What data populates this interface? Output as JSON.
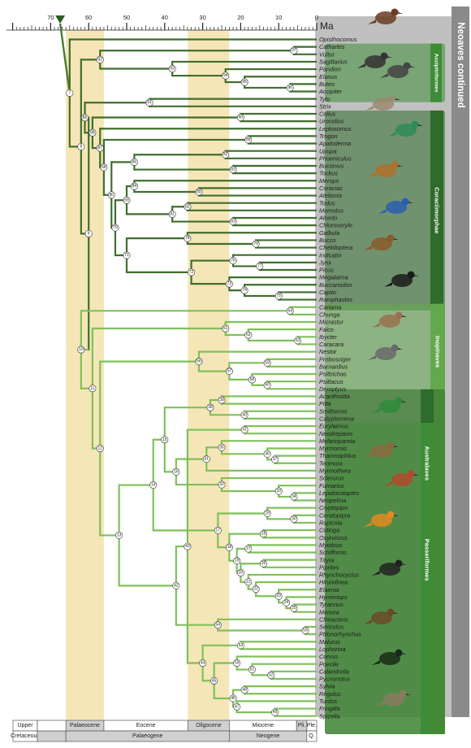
{
  "title": "Neoaves continued",
  "axis": {
    "unit": "Ma",
    "ticks": [
      70,
      60,
      50,
      40,
      30,
      20,
      10,
      0
    ]
  },
  "colors": {
    "epoch_band": "#f5e6b8",
    "epoch_band_dark": "#efd999",
    "stem": "#4a7a32",
    "branch_light": "#7fc05a",
    "branch_dark": "#3f6e2c",
    "group_dark": "#2f6b2a",
    "group_mid": "#3e8c37",
    "group_light": "#64a84e",
    "grey_panel": "#8c8c8c"
  },
  "groups": [
    {
      "label": "Accipitriformes"
    },
    {
      "label": "Coraciimorphae"
    },
    {
      "label": "Inopinaves"
    },
    {
      "label": "Australaves"
    },
    {
      "label": "Passeriformes"
    }
  ],
  "taxa": [
    "Opisthocomus",
    "Cathartes",
    "Vultur",
    "Sagittarius",
    "Pandion",
    "Elanus",
    "Buteo",
    "Accipiter",
    "Tyto",
    "Strix",
    "Colius",
    "Urocolius",
    "Leptosomus",
    "Trogon",
    "Apaloderma",
    "Upupa",
    "Phoeniculus",
    "Bucorvus",
    "Tockus",
    "Merops",
    "Coracias",
    "Atelornis",
    "Todus",
    "Momotus",
    "Alcedo",
    "Chloroceryle",
    "Galbula",
    "Bucco",
    "Chelidoptera",
    "Indicator",
    "Jynx",
    "Picus",
    "Megalaima",
    "Buccanodon",
    "Capito",
    "Ramphastos",
    "Cariama",
    "Chunga",
    "Micrastur",
    "Falco",
    "Ibycter",
    "Caracara",
    "Nestor",
    "Probosciger",
    "Barnardius",
    "Psittrichas",
    "Psittacus",
    "Deroptyus",
    "Acanthisitta",
    "Pitta",
    "Smithornis",
    "Calyptomena",
    "Eurylaimus",
    "Neodrepanis",
    "Melanopareia",
    "Myrmornis",
    "Thamnophilus",
    "Terenura",
    "Myrmothera",
    "Sclerurus",
    "Furnarius",
    "Lepidocolaptes",
    "Neopelma",
    "Cryptopipo",
    "Ceratopipra",
    "Rupicola",
    "Cotinga",
    "Oxyruncus",
    "Myiobius",
    "Schiffornis",
    "Tityra",
    "Piprites",
    "Rhynchocyclus",
    "Hirundinea",
    "Elaenia",
    "Hymenops",
    "Tyrannus",
    "Menura",
    "Climacteris",
    "Sericulus",
    "Ptilonorhynchus",
    "Malurus",
    "Lophorina",
    "Corvus",
    "Poecile",
    "Calandrella",
    "Pycnonotus",
    "Sylvia",
    "Regulus",
    "Turdus",
    "Fringilla",
    "Spizella"
  ],
  "nodes": [
    {
      "id": "n7",
      "label": "7",
      "age": 65
    },
    {
      "id": "n8",
      "label": "8",
      "age": 62
    },
    {
      "id": "n9",
      "label": "9",
      "age": 60
    },
    {
      "id": "n92",
      "label": "92",
      "age": 57
    },
    {
      "id": "n93",
      "label": "93",
      "age": 38
    },
    {
      "id": "n97",
      "label": "97",
      "age": 6
    },
    {
      "id": "n94",
      "label": "94",
      "age": 24
    },
    {
      "id": "n95",
      "label": "95",
      "age": 19
    },
    {
      "id": "n96",
      "label": "96",
      "age": 7
    },
    {
      "id": "n91",
      "label": "91",
      "age": 44
    },
    {
      "id": "n85",
      "label": "85",
      "age": 61
    },
    {
      "id": "n88",
      "label": "88",
      "age": 59
    },
    {
      "id": "n90",
      "label": "90",
      "age": 20
    },
    {
      "id": "n87",
      "label": "87",
      "age": 57
    },
    {
      "id": "n89",
      "label": "89",
      "age": 18
    },
    {
      "id": "n68",
      "label": "68",
      "age": 56
    },
    {
      "id": "n86",
      "label": "86",
      "age": 48
    },
    {
      "id": "n82",
      "label": "82",
      "age": 24
    },
    {
      "id": "n83",
      "label": "83",
      "age": 22
    },
    {
      "id": "n80",
      "label": "80",
      "age": 54
    },
    {
      "id": "n69",
      "label": "69",
      "age": 50
    },
    {
      "id": "n84",
      "label": "84",
      "age": 48
    },
    {
      "id": "n85b",
      "label": "85",
      "age": 31
    },
    {
      "id": "n81",
      "label": "81",
      "age": 38
    },
    {
      "id": "n82b",
      "label": "82",
      "age": 34
    },
    {
      "id": "n83b",
      "label": "83",
      "age": 22
    },
    {
      "id": "n70",
      "label": "70",
      "age": 53
    },
    {
      "id": "n71",
      "label": "71",
      "age": 50
    },
    {
      "id": "n78",
      "label": "78",
      "age": 34
    },
    {
      "id": "n79",
      "label": "79",
      "age": 16
    },
    {
      "id": "n72",
      "label": "72",
      "age": 33
    },
    {
      "id": "n76",
      "label": "76",
      "age": 22
    },
    {
      "id": "n77",
      "label": "77",
      "age": 15
    },
    {
      "id": "n73",
      "label": "73",
      "age": 23
    },
    {
      "id": "n74",
      "label": "74",
      "age": 19
    },
    {
      "id": "n75",
      "label": "75",
      "age": 10
    },
    {
      "id": "n10",
      "label": "10",
      "age": 62
    },
    {
      "id": "n64",
      "label": "64",
      "age": 7
    },
    {
      "id": "n11",
      "label": "11",
      "age": 59
    },
    {
      "id": "n61",
      "label": "61",
      "age": 24
    },
    {
      "id": "n62",
      "label": "62",
      "age": 18
    },
    {
      "id": "n63",
      "label": "63",
      "age": 5
    },
    {
      "id": "n56",
      "label": "56",
      "age": 31
    },
    {
      "id": "n57",
      "label": "57",
      "age": 23
    },
    {
      "id": "n59",
      "label": "59",
      "age": 13
    },
    {
      "id": "n58",
      "label": "58",
      "age": 17
    },
    {
      "id": "n60",
      "label": "60",
      "age": 13
    },
    {
      "id": "n12",
      "label": "12",
      "age": 57
    },
    {
      "id": "n13",
      "label": "13",
      "age": 52
    },
    {
      "id": "n39",
      "label": "39",
      "age": 25
    },
    {
      "id": "n38",
      "label": "38",
      "age": 28
    },
    {
      "id": "n40",
      "label": "40",
      "age": 19
    },
    {
      "id": "n41",
      "label": "41",
      "age": 19
    },
    {
      "id": "n15",
      "label": "15",
      "age": 40
    },
    {
      "id": "n35",
      "label": "35",
      "age": 25
    },
    {
      "id": "n36",
      "label": "36",
      "age": 13
    },
    {
      "id": "n37",
      "label": "37",
      "age": 11
    },
    {
      "id": "n31",
      "label": "31",
      "age": 29
    },
    {
      "id": "n16",
      "label": "16",
      "age": 37
    },
    {
      "id": "n32",
      "label": "32",
      "age": 25
    },
    {
      "id": "n33",
      "label": "33",
      "age": 10
    },
    {
      "id": "n34",
      "label": "34",
      "age": 6
    },
    {
      "id": "n14",
      "label": "14",
      "age": 43
    },
    {
      "id": "n17",
      "label": "17",
      "age": 26
    },
    {
      "id": "n29",
      "label": "29",
      "age": 13
    },
    {
      "id": "n30",
      "label": "30",
      "age": 6
    },
    {
      "id": "n28",
      "label": "28",
      "age": 14
    },
    {
      "id": "n18",
      "label": "18",
      "age": 23
    },
    {
      "id": "n27",
      "label": "27",
      "age": 18
    },
    {
      "id": "n19",
      "label": "19",
      "age": 21
    },
    {
      "id": "n26",
      "label": "26",
      "age": 14
    },
    {
      "id": "n20",
      "label": "20",
      "age": 20
    },
    {
      "id": "n21",
      "label": "21",
      "age": 18
    },
    {
      "id": "n22",
      "label": "22",
      "age": 16
    },
    {
      "id": "n23",
      "label": "23",
      "age": 10
    },
    {
      "id": "n24",
      "label": "24",
      "age": 8
    },
    {
      "id": "n25",
      "label": "25",
      "age": 6
    },
    {
      "id": "n42",
      "label": "42",
      "age": 37
    },
    {
      "id": "n54",
      "label": "54",
      "age": 26
    },
    {
      "id": "n55",
      "label": "55",
      "age": 3
    },
    {
      "id": "n43",
      "label": "43",
      "age": 34
    },
    {
      "id": "n44",
      "label": "44",
      "age": 30
    },
    {
      "id": "n53",
      "label": "53",
      "age": 20
    },
    {
      "id": "n45",
      "label": "45",
      "age": 27
    },
    {
      "id": "n50",
      "label": "50",
      "age": 21
    },
    {
      "id": "n51",
      "label": "51",
      "age": 17
    },
    {
      "id": "n52",
      "label": "52",
      "age": 12
    },
    {
      "id": "n46",
      "label": "46",
      "age": 22
    },
    {
      "id": "n48",
      "label": "48",
      "age": 19
    },
    {
      "id": "n47",
      "label": "47",
      "age": 21
    },
    {
      "id": "n49",
      "label": "49",
      "age": 11
    }
  ],
  "timescale": {
    "row1": {
      "label": "Upper",
      "epochs": [
        "Palaeocene",
        "Eocene",
        "Oligocene",
        "Miocene",
        "Pli.",
        "Ple."
      ]
    },
    "row2": {
      "label": "Cretaceous",
      "periods": [
        "Palaeogene",
        "Neogene",
        "Q."
      ]
    }
  }
}
